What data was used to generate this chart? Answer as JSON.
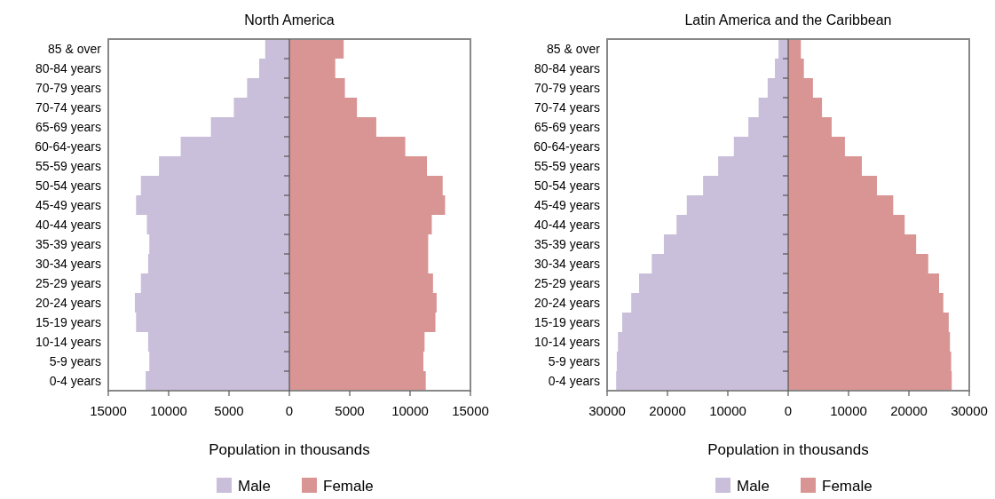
{
  "chart_data": [
    {
      "type": "bar",
      "title": "North America",
      "orientation": "horizontal",
      "stacked": true,
      "xlabel": "Population in thousands",
      "legend": "bottom",
      "categories": [
        "85 & over",
        "80-84 years",
        "70-79 years",
        "70-74 years",
        "65-69 years",
        "60-64-years",
        "55-59 years",
        "50-54 years",
        "45-49 years",
        "40-44 years",
        "35-39 years",
        "30-34 years",
        "25-29 years",
        "20-24 years",
        "15-19 years",
        "10-14 years",
        "5-9 years",
        "0-4 years"
      ],
      "xlim": [
        -15000,
        15000
      ],
      "xticks": [
        {
          "value": -15000,
          "label": "15000"
        },
        {
          "value": -10000,
          "label": "10000"
        },
        {
          "value": -5000,
          "label": "5000"
        },
        0,
        5000,
        10000,
        15000
      ],
      "series": [
        {
          "name": "Male",
          "color": "#c9bfda",
          "values": [
            -2000,
            -2500,
            -3500,
            -4600,
            -6500,
            -9000,
            -10800,
            -12300,
            -12700,
            -11800,
            -11600,
            -11700,
            -12300,
            -12800,
            -12700,
            -11700,
            -11600,
            -11900
          ]
        },
        {
          "name": "Female",
          "color": "#d99494",
          "values": [
            4500,
            3800,
            4600,
            5600,
            7200,
            9600,
            11400,
            12700,
            12900,
            11800,
            11500,
            11500,
            11900,
            12200,
            12100,
            11200,
            11100,
            11300
          ]
        }
      ]
    },
    {
      "type": "bar",
      "title": "Latin America and the Caribbean",
      "orientation": "horizontal",
      "stacked": true,
      "xlabel": "Population in thousands",
      "legend": "bottom",
      "categories": [
        "85 & over",
        "80-84 years",
        "70-79 years",
        "70-74 years",
        "65-69 years",
        "60-64-years",
        "55-59 years",
        "50-54 years",
        "45-49 years",
        "40-44 years",
        "35-39 years",
        "30-34 years",
        "25-29 years",
        "20-24 years",
        "15-19 years",
        "10-14 years",
        "5-9 years",
        "0-4 years"
      ],
      "xlim": [
        -30000,
        30000
      ],
      "xticks": [
        {
          "value": -30000,
          "label": "30000"
        },
        {
          "value": -20000,
          "label": "20000"
        },
        {
          "value": -10000,
          "label": "10000"
        },
        0,
        10000,
        20000,
        30000
      ],
      "series": [
        {
          "name": "Male",
          "color": "#c9bfda",
          "values": [
            -1600,
            -2200,
            -3400,
            -4900,
            -6600,
            -9000,
            -11600,
            -14100,
            -16800,
            -18500,
            -20600,
            -22600,
            -24700,
            -26000,
            -27500,
            -28200,
            -28400,
            -28500
          ]
        },
        {
          "name": "Female",
          "color": "#d99494",
          "values": [
            2100,
            2600,
            4100,
            5600,
            7200,
            9400,
            12200,
            14700,
            17400,
            19300,
            21200,
            23200,
            25000,
            25700,
            26600,
            26800,
            27000,
            27100
          ]
        }
      ]
    }
  ]
}
